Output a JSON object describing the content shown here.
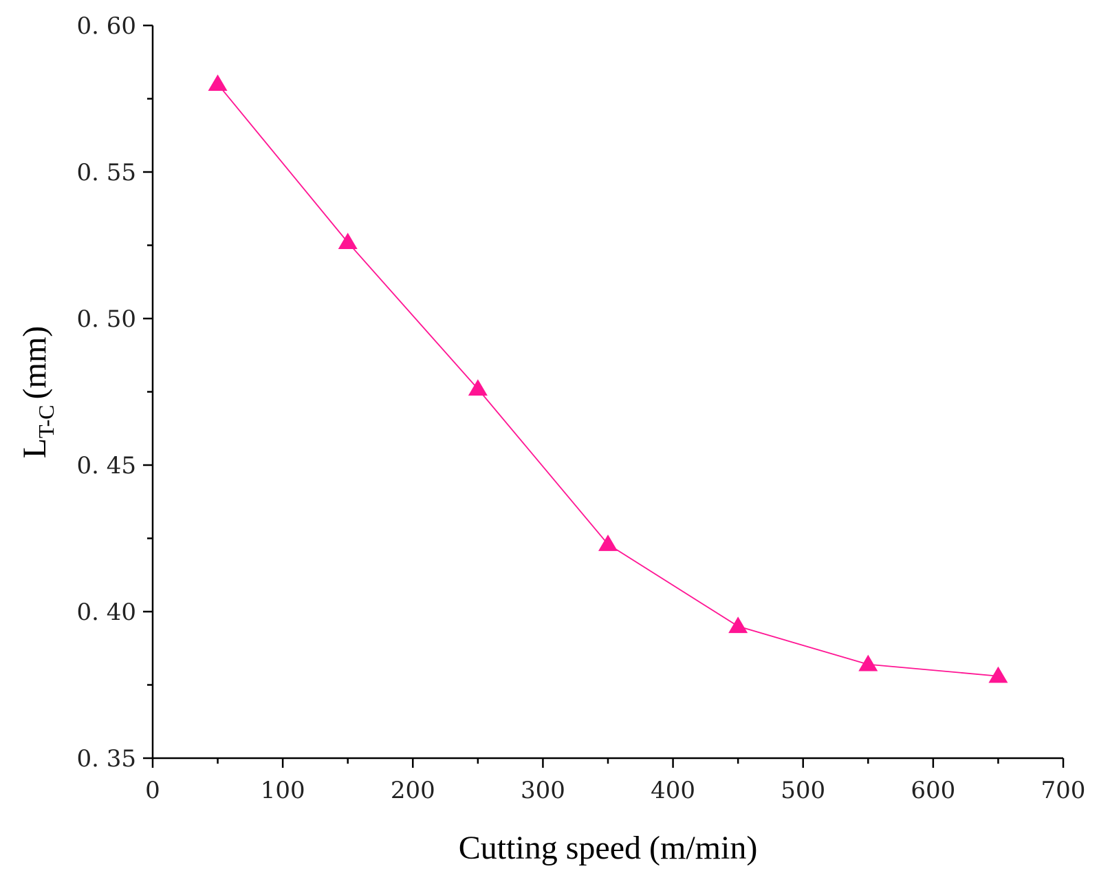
{
  "chart_data": {
    "type": "line",
    "title": "",
    "xlabel": "Cutting speed (m/min)",
    "ylabel": {
      "main": "L",
      "subscript": "T-C",
      "unit": "(mm)"
    },
    "xlim": [
      0,
      700
    ],
    "ylim": [
      0.35,
      0.6
    ],
    "xticks": [
      0,
      100,
      200,
      300,
      400,
      500,
      600,
      700
    ],
    "xtick_labels": [
      "0",
      "100",
      "200",
      "300",
      "400",
      "500",
      "600",
      "700"
    ],
    "yticks": [
      0.35,
      0.4,
      0.45,
      0.5,
      0.55,
      0.6
    ],
    "ytick_labels": [
      "0. 35",
      "0. 40",
      "0. 45",
      "0. 50",
      "0. 55",
      "0. 60"
    ],
    "series": [
      {
        "name": "LT-C",
        "color": "#ff1493",
        "marker": "triangle",
        "x": [
          50,
          150,
          250,
          350,
          450,
          550,
          650
        ],
        "values": [
          0.58,
          0.526,
          0.476,
          0.423,
          0.395,
          0.382,
          0.378
        ]
      }
    ]
  }
}
